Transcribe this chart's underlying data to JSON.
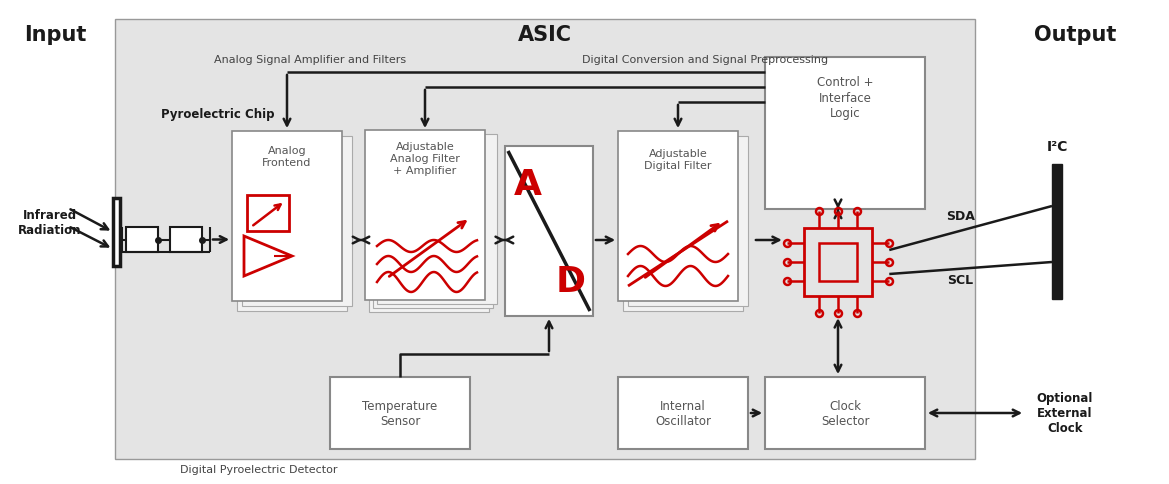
{
  "title_input": "Input",
  "title_output": "Output",
  "title_asic": "ASIC",
  "label_analog": "Analog Signal Amplifier and Filters",
  "label_digital": "Digital Conversion and Signal Preprocessing",
  "label_ir": "Infrared\nRadiation",
  "label_pyro": "Pyroelectric Chip",
  "label_analog_fe": "Analog\nFrontend",
  "label_adj_analog": "Adjustable\nAnalog Filter\n+ Amplifier",
  "label_adj_digital": "Adjustable\nDigital Filter",
  "label_control": "Control +\nInterface\nLogic",
  "label_temp": "Temperature\nSensor",
  "label_osc": "Internal\nOscillator",
  "label_clock": "Clock\nSelector",
  "label_i2c": "I²C",
  "label_sda": "SDA",
  "label_scl": "SCL",
  "label_ext_clock": "Optional\nExternal\nClock",
  "label_dpd": "Digital Pyroelectric Detector",
  "red": "#cc0000",
  "black": "#1a1a1a",
  "gray_bg": "#e0e0e0",
  "white": "#ffffff",
  "dark_gray_text": "#555555"
}
